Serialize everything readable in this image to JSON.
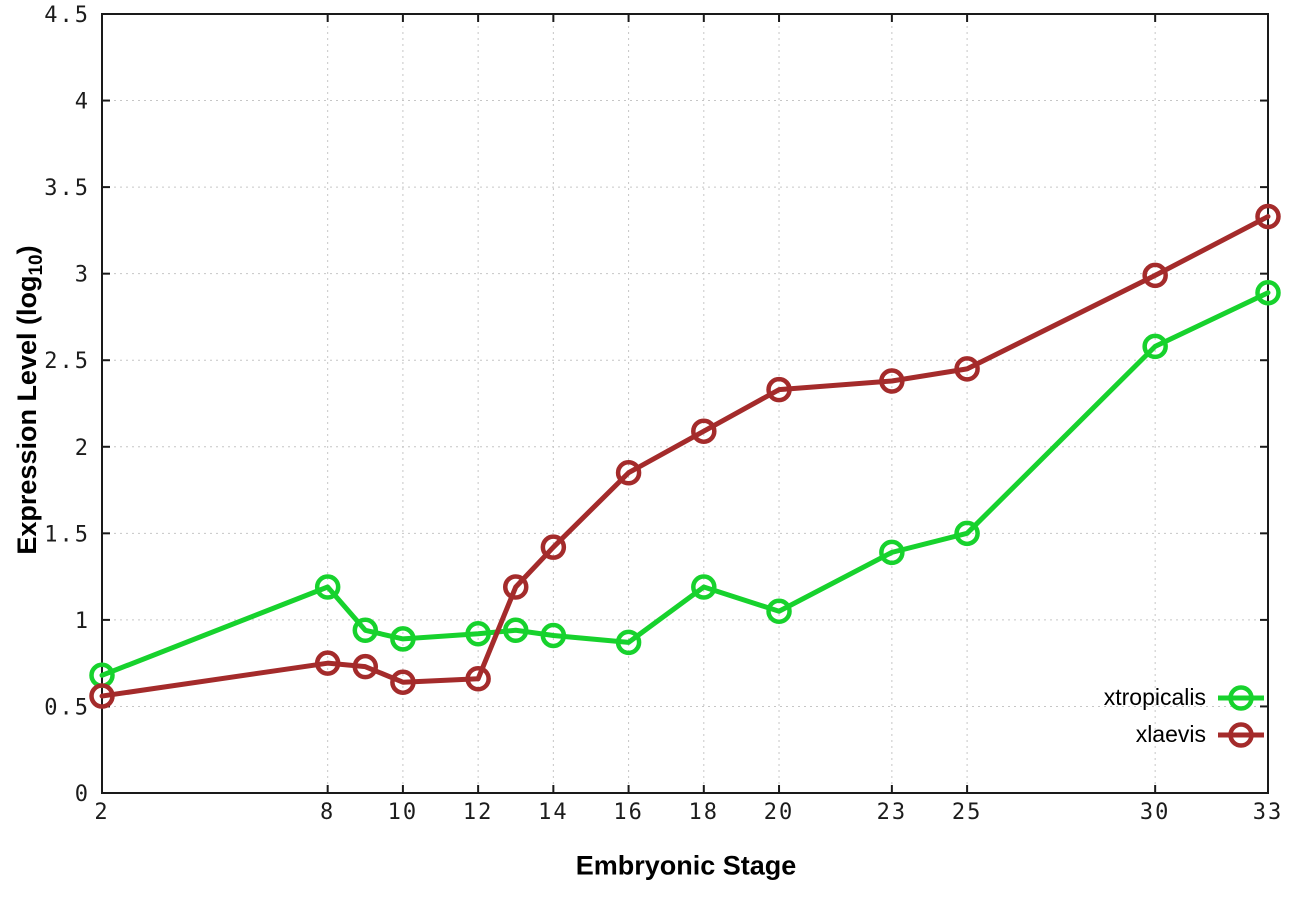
{
  "chart_data": {
    "type": "line",
    "title": "",
    "xlabel": "Embryonic Stage",
    "ylabel": "Expression Level (log10)",
    "ylabel_parts": {
      "main": "Expression Level (log",
      "sub": "10",
      "end": ")"
    },
    "x": [
      2,
      8,
      9,
      10,
      12,
      13,
      14,
      16,
      18,
      20,
      23,
      25,
      30,
      33
    ],
    "series": [
      {
        "name": "xtropicalis",
        "color": "#17d22d",
        "values": [
          0.68,
          1.19,
          0.94,
          0.89,
          0.92,
          0.94,
          0.91,
          0.87,
          1.19,
          1.05,
          1.39,
          1.5,
          2.58,
          2.89
        ]
      },
      {
        "name": "xlaevis",
        "color": "#a42b2b",
        "values": [
          0.56,
          0.75,
          0.73,
          0.64,
          0.66,
          1.19,
          1.42,
          1.85,
          2.09,
          2.33,
          2.38,
          2.45,
          2.99,
          3.33
        ]
      }
    ],
    "xlim": [
      2,
      33
    ],
    "ylim": [
      0,
      4.5
    ],
    "x_ticks": [
      2,
      8,
      10,
      12,
      14,
      16,
      18,
      20,
      23,
      25,
      30,
      33
    ],
    "x_tick_labels": [
      "2",
      "8",
      "10",
      "12",
      "14",
      "16",
      "18",
      "20",
      "23",
      "25",
      "30",
      "33"
    ],
    "y_ticks": [
      0,
      0.5,
      1,
      1.5,
      2,
      2.5,
      3,
      3.5,
      4,
      4.5
    ],
    "y_tick_labels": [
      "0",
      "0.5",
      "1",
      "1.5",
      "2",
      "2.5",
      "3",
      "3.5",
      "4",
      "4.5"
    ],
    "grid": true,
    "marker": "open-circle",
    "legend_position": "bottom-right",
    "colors": {
      "border": "#1a1a1a",
      "grid": "#c6c6c6",
      "tick_text": "#1c1c1c"
    }
  },
  "legend": {
    "items": [
      {
        "label": "xtropicalis"
      },
      {
        "label": "xlaevis"
      }
    ]
  }
}
